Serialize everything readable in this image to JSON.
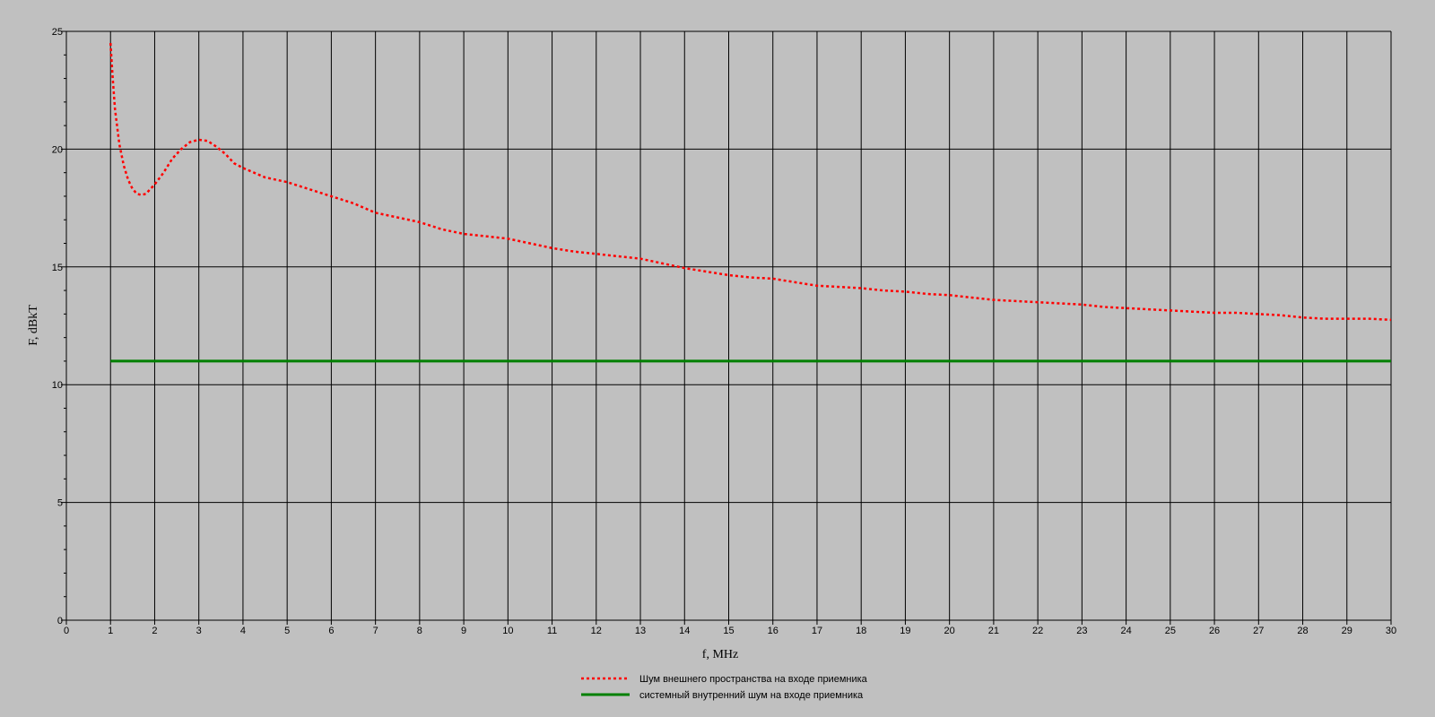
{
  "chart_data": {
    "type": "line",
    "title": "",
    "xlabel": "f, MHz",
    "ylabel": "F, dBkT",
    "xlim": [
      0,
      30
    ],
    "ylim": [
      0,
      25
    ],
    "x_ticks": [
      0,
      1,
      2,
      3,
      4,
      5,
      6,
      7,
      8,
      9,
      10,
      11,
      12,
      13,
      14,
      15,
      16,
      17,
      18,
      19,
      20,
      21,
      22,
      23,
      24,
      25,
      26,
      27,
      28,
      29,
      30
    ],
    "y_ticks": [
      0,
      5,
      10,
      15,
      20,
      25
    ],
    "grid": true,
    "legend_position": "bottom-center",
    "series": [
      {
        "name": "Шум внешнего пространства на входе приемника",
        "color": "#ff0000",
        "style": "dotted",
        "points": [
          [
            1.0,
            24.5
          ],
          [
            1.05,
            23.0
          ],
          [
            1.1,
            21.7
          ],
          [
            1.2,
            20.2
          ],
          [
            1.3,
            19.3
          ],
          [
            1.4,
            18.7
          ],
          [
            1.5,
            18.3
          ],
          [
            1.6,
            18.1
          ],
          [
            1.7,
            18.05
          ],
          [
            1.8,
            18.1
          ],
          [
            1.9,
            18.3
          ],
          [
            2.0,
            18.5
          ],
          [
            2.2,
            19.0
          ],
          [
            2.4,
            19.6
          ],
          [
            2.6,
            20.0
          ],
          [
            2.8,
            20.3
          ],
          [
            3.0,
            20.4
          ],
          [
            3.2,
            20.35
          ],
          [
            3.4,
            20.1
          ],
          [
            3.6,
            19.8
          ],
          [
            3.8,
            19.4
          ],
          [
            4.0,
            19.2
          ],
          [
            4.5,
            18.8
          ],
          [
            5.0,
            18.6
          ],
          [
            5.5,
            18.3
          ],
          [
            6.0,
            18.0
          ],
          [
            6.5,
            17.7
          ],
          [
            7.0,
            17.3
          ],
          [
            7.5,
            17.1
          ],
          [
            8.0,
            16.9
          ],
          [
            8.5,
            16.6
          ],
          [
            9.0,
            16.4
          ],
          [
            9.5,
            16.3
          ],
          [
            10.0,
            16.2
          ],
          [
            10.5,
            16.0
          ],
          [
            11.0,
            15.8
          ],
          [
            11.5,
            15.65
          ],
          [
            12.0,
            15.55
          ],
          [
            12.5,
            15.45
          ],
          [
            13.0,
            15.35
          ],
          [
            13.5,
            15.15
          ],
          [
            14.0,
            14.95
          ],
          [
            14.5,
            14.8
          ],
          [
            15.0,
            14.65
          ],
          [
            15.5,
            14.55
          ],
          [
            16.0,
            14.5
          ],
          [
            16.5,
            14.35
          ],
          [
            17.0,
            14.2
          ],
          [
            17.5,
            14.15
          ],
          [
            18.0,
            14.1
          ],
          [
            18.5,
            14.0
          ],
          [
            19.0,
            13.95
          ],
          [
            19.5,
            13.85
          ],
          [
            20.0,
            13.8
          ],
          [
            20.5,
            13.7
          ],
          [
            21.0,
            13.6
          ],
          [
            21.5,
            13.55
          ],
          [
            22.0,
            13.5
          ],
          [
            22.5,
            13.45
          ],
          [
            23.0,
            13.4
          ],
          [
            23.5,
            13.3
          ],
          [
            24.0,
            13.25
          ],
          [
            24.5,
            13.2
          ],
          [
            25.0,
            13.15
          ],
          [
            25.5,
            13.1
          ],
          [
            26.0,
            13.05
          ],
          [
            26.5,
            13.05
          ],
          [
            27.0,
            13.0
          ],
          [
            27.5,
            12.95
          ],
          [
            28.0,
            12.85
          ],
          [
            28.5,
            12.8
          ],
          [
            29.0,
            12.8
          ],
          [
            29.5,
            12.8
          ],
          [
            30.0,
            12.75
          ]
        ]
      },
      {
        "name": "системный внутренний шум на входе приемника",
        "color": "#008000",
        "style": "solid",
        "points": [
          [
            1.0,
            11.0
          ],
          [
            30.0,
            11.0
          ]
        ]
      }
    ]
  },
  "colors": {
    "background": "#c0c0c0",
    "grid": "#000000",
    "axis": "#000000"
  }
}
